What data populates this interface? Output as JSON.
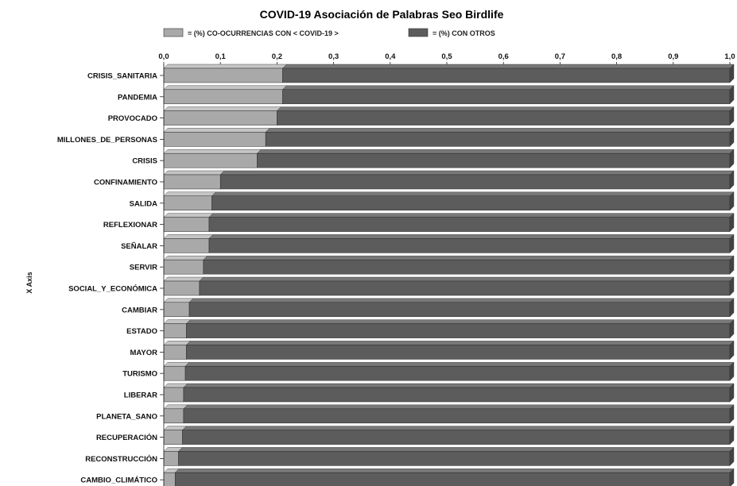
{
  "chart_data": {
    "type": "bar",
    "orientation": "horizontal",
    "stacked": true,
    "title": "COVID-19 Asociación de Palabras Seo Birdlife",
    "ylabel": "X Axis",
    "xlim": [
      0,
      1
    ],
    "x_ticks": [
      "0,0",
      "0,1",
      "0,2",
      "0,3",
      "0,4",
      "0,5",
      "0,6",
      "0,7",
      "0,8",
      "0,9",
      "1,0"
    ],
    "legend_position": "top",
    "categories": [
      "CRISIS_SANITARIA",
      "PANDEMIA",
      "PROVOCADO",
      "MILLONES_DE_PERSONAS",
      "CRISIS",
      "CONFINAMIENTO",
      "SALIDA",
      "REFLEXIONAR",
      "SEÑALAR",
      "SERVIR",
      "SOCIAL_Y_ECONÓMICA",
      "CAMBIAR",
      "ESTADO",
      "MAYOR",
      "TURISMO",
      "LIBERAR",
      "PLANETA_SANO",
      "RECUPERACIÓN",
      "RECONSTRUCCIÓN",
      "CAMBIO_CLIMÁTICO"
    ],
    "series": [
      {
        "name": "= (%) CO-OCURRENCIAS CON < COVID-19 >",
        "color": "#a9a9a9",
        "values": [
          0.21,
          0.21,
          0.2,
          0.18,
          0.165,
          0.1,
          0.085,
          0.08,
          0.08,
          0.07,
          0.063,
          0.045,
          0.04,
          0.04,
          0.038,
          0.035,
          0.035,
          0.033,
          0.026,
          0.02
        ]
      },
      {
        "name": "= (%) CON OTROS",
        "color": "#5c5c5c",
        "values": [
          0.79,
          0.79,
          0.8,
          0.82,
          0.835,
          0.9,
          0.915,
          0.92,
          0.92,
          0.93,
          0.937,
          0.955,
          0.96,
          0.96,
          0.962,
          0.965,
          0.965,
          0.967,
          0.974,
          0.98
        ]
      }
    ]
  }
}
